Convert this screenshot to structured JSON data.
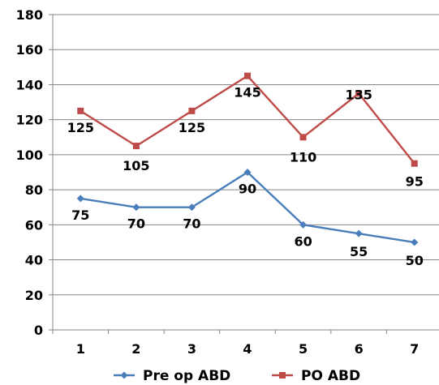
{
  "chart_data": {
    "type": "line",
    "title": "",
    "xlabel": "",
    "ylabel": "",
    "categories": [
      "1",
      "2",
      "3",
      "4",
      "5",
      "6",
      "7"
    ],
    "ylim": [
      0,
      180
    ],
    "yticks": [
      "0",
      "20",
      "40",
      "60",
      "80",
      "100",
      "120",
      "140",
      "160",
      "180"
    ],
    "grid": "horizontal",
    "legend_position": "bottom",
    "series": [
      {
        "name": "Pre op ABD",
        "values": [
          75,
          70,
          70,
          90,
          60,
          55,
          50
        ],
        "color": "#4a7ebb",
        "marker": "diamond"
      },
      {
        "name": "PO ABD",
        "values": [
          125,
          105,
          125,
          145,
          110,
          135,
          95
        ],
        "color": "#be4b48",
        "marker": "square"
      }
    ]
  }
}
